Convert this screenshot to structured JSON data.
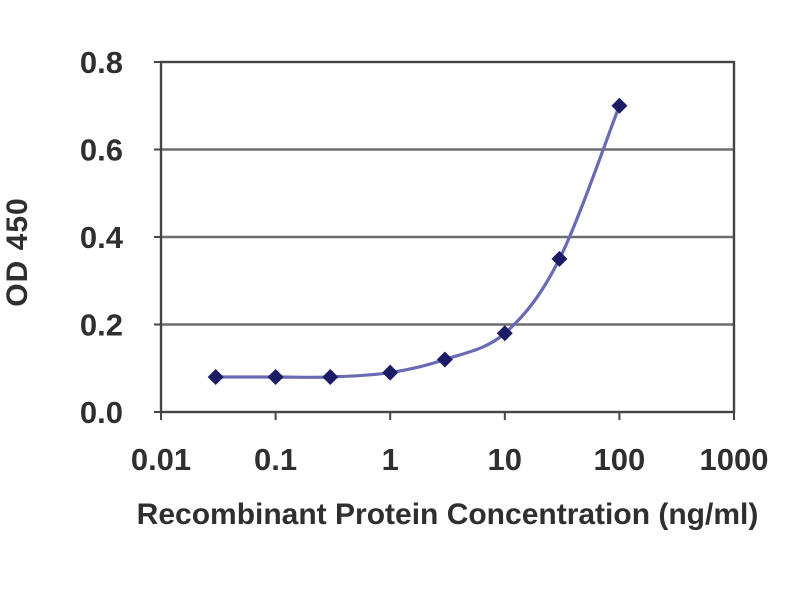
{
  "chart_data": {
    "type": "line",
    "title": "",
    "xlabel": "Recombinant Protein Concentration (ng/ml)",
    "ylabel": "OD 450",
    "x_scale": "log",
    "xlim": [
      0.01,
      1000
    ],
    "ylim": [
      0.0,
      0.8
    ],
    "x_tick_values": [
      0.01,
      0.1,
      1,
      10,
      100,
      1000
    ],
    "x_tick_labels": [
      "0.01",
      "0.1",
      "1",
      "10",
      "100",
      "1000"
    ],
    "y_tick_values": [
      0.0,
      0.2,
      0.4,
      0.6,
      0.8
    ],
    "y_tick_labels": [
      "0.0",
      "0.2",
      "0.4",
      "0.6",
      "0.8"
    ],
    "grid": "horizontal",
    "legend": "none",
    "series": [
      {
        "marker": "diamond",
        "smoothed": true,
        "x": [
          0.03,
          0.1,
          0.3,
          1,
          3,
          10,
          30,
          100
        ],
        "y": [
          0.08,
          0.08,
          0.08,
          0.09,
          0.12,
          0.18,
          0.35,
          0.7
        ]
      }
    ],
    "colors": {
      "line": "#6a6ab4",
      "marker": "#1b1b66",
      "grid": "#6e6e6e",
      "axis": "#454545",
      "text": "#2f2f2f",
      "background": "#ffffff"
    }
  }
}
